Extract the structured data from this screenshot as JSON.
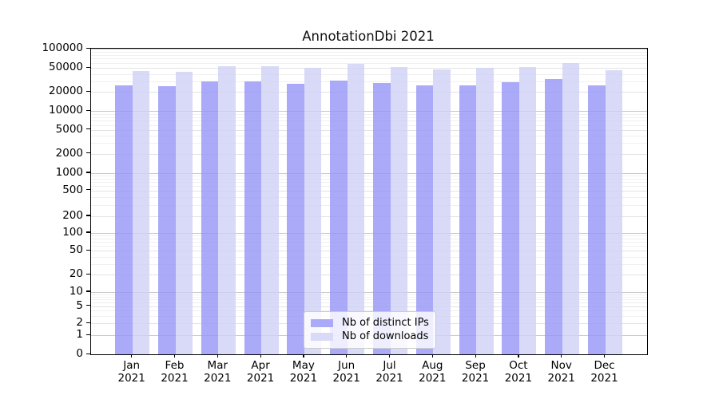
{
  "title": "AnnotationDbi 2021",
  "chart_data": {
    "type": "bar",
    "title": "AnnotationDbi 2021",
    "categories": [
      "Jan 2021",
      "Feb 2021",
      "Mar 2021",
      "Apr 2021",
      "May 2021",
      "Jun 2021",
      "Jul 2021",
      "Aug 2021",
      "Sep 2021",
      "Oct 2021",
      "Nov 2021",
      "Dec 2021"
    ],
    "series": [
      {
        "name": "Nb of distinct IPs",
        "color": "#aaaaf8",
        "values": [
          26000,
          25200,
          30300,
          29800,
          27100,
          31000,
          28000,
          25900,
          26000,
          29400,
          33200,
          25800
        ]
      },
      {
        "name": "Nb of downloads",
        "color": "#d9d9f8",
        "values": [
          44700,
          43000,
          53500,
          54000,
          50400,
          57900,
          52400,
          47900,
          50400,
          52400,
          59600,
          46500
        ]
      }
    ],
    "yticks": [
      0,
      1,
      2,
      5,
      10,
      20,
      50,
      100,
      200,
      500,
      1000,
      2000,
      5000,
      10000,
      20000,
      50000,
      100000
    ],
    "ylim": [
      0,
      100000
    ],
    "yscale": "symlog",
    "grid": true,
    "legend": {
      "position": "lower center"
    }
  }
}
